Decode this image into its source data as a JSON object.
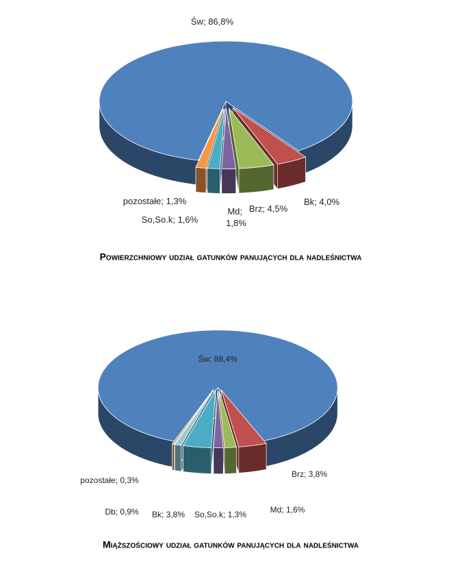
{
  "chart_data": [
    {
      "type": "pie3d",
      "title": "Powierzchniowy udział gatunków panujących dla nadleśnictwa",
      "categories": [
        "Św",
        "Bk",
        "Brz",
        "Md",
        "So,So.k",
        "pozostałe"
      ],
      "values": [
        86.8,
        4.0,
        4.5,
        1.8,
        1.6,
        1.3
      ],
      "value_labels": [
        "86,8%",
        "4,0%",
        "4,5%",
        "1,8%",
        "1,6%",
        "1,3%"
      ],
      "separator": "; ",
      "colors": [
        "#4f81bd",
        "#c0504d",
        "#9bbb59",
        "#8064a2",
        "#4bacc6",
        "#f79646"
      ]
    },
    {
      "type": "pie3d",
      "title": "Miąższościowy udział gatunków panujących dla nadleśnictwa",
      "categories": [
        "Św",
        "Brz",
        "Md",
        "So,So.k",
        "Bk",
        "Db",
        "pozostałe"
      ],
      "values": [
        88.4,
        3.8,
        1.6,
        1.3,
        3.8,
        0.9,
        0.3
      ],
      "value_labels": [
        "88,4%",
        "3,8%",
        "1,6%",
        "1,3%",
        "3,8%",
        "0,9%",
        "0,3%"
      ],
      "separator": "; ",
      "colors": [
        "#4f81bd",
        "#c0504d",
        "#9bbb59",
        "#8064a2",
        "#4bacc6",
        "#93cddd",
        "#f79646"
      ]
    }
  ]
}
